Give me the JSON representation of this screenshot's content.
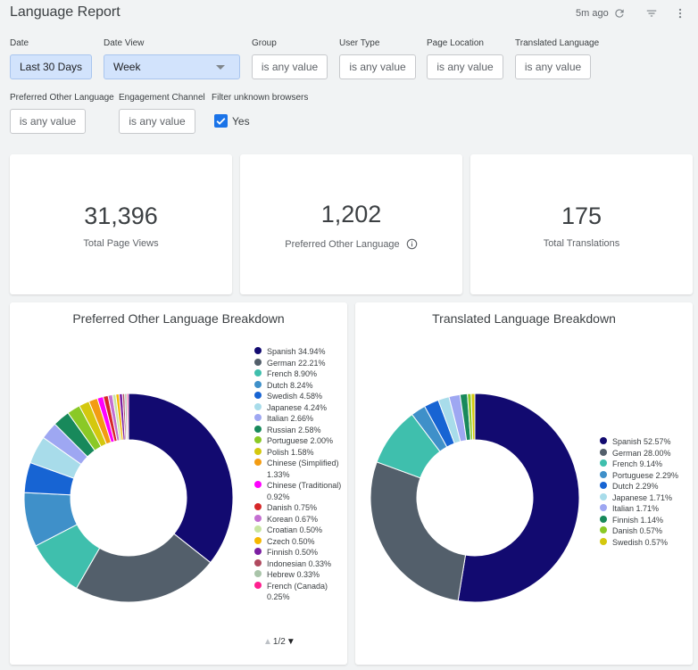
{
  "header": {
    "title": "Language Report",
    "updated": "5m ago",
    "icons": [
      "refresh-icon",
      "filter-icon",
      "more-vert-icon"
    ]
  },
  "filters": {
    "date": {
      "label": "Date",
      "value": "Last 30 Days"
    },
    "date_view": {
      "label": "Date View",
      "value": "Week"
    },
    "group": {
      "label": "Group",
      "value": "is any value"
    },
    "user_type": {
      "label": "User Type",
      "value": "is any value"
    },
    "page_location": {
      "label": "Page Location",
      "value": "is any value"
    },
    "translated_language": {
      "label": "Translated Language",
      "value": "is any value"
    },
    "preferred_other_language": {
      "label": "Preferred Other Language",
      "value": "is any value"
    },
    "engagement_channel": {
      "label": "Engagement Channel",
      "value": "is any value"
    },
    "filter_unknown_browsers": {
      "label": "Filter unknown browsers",
      "value": "Yes",
      "checked": true
    }
  },
  "kpis": [
    {
      "value": "31,396",
      "label": "Total Page Views"
    },
    {
      "value": "1,202",
      "label": "Preferred Other Language"
    },
    {
      "value": "175",
      "label": "Total Translations"
    }
  ],
  "pager": {
    "text": "1/2"
  },
  "chart_data": [
    {
      "type": "pie",
      "donut": true,
      "title": "Preferred Other Language Breakdown",
      "legend_position": "right",
      "slices": [
        {
          "label": "Spanish 34.94%",
          "value": 34.94,
          "color": "#120a70"
        },
        {
          "label": "German 22.21%",
          "value": 22.21,
          "color": "#535f6b"
        },
        {
          "label": "French 8.90%",
          "value": 8.9,
          "color": "#3fbfad"
        },
        {
          "label": "Dutch 8.24%",
          "value": 8.24,
          "color": "#3f90c9"
        },
        {
          "label": "Swedish 4.58%",
          "value": 4.58,
          "color": "#1764d3"
        },
        {
          "label": "Japanese 4.24%",
          "value": 4.24,
          "color": "#a8dcea"
        },
        {
          "label": "Italian 2.66%",
          "value": 2.66,
          "color": "#9ea7f2"
        },
        {
          "label": "Russian 2.58%",
          "value": 2.58,
          "color": "#18895b"
        },
        {
          "label": "Portuguese 2.00%",
          "value": 2.0,
          "color": "#8ac926"
        },
        {
          "label": "Polish 1.58%",
          "value": 1.58,
          "color": "#d4c80e"
        },
        {
          "label": "Chinese (Simplified) 1.33%",
          "value": 1.33,
          "color": "#f39c12"
        },
        {
          "label": "Chinese (Traditional) 0.92%",
          "value": 0.92,
          "color": "#ff00ff"
        },
        {
          "label": "Danish 0.75%",
          "value": 0.75,
          "color": "#d62728"
        },
        {
          "label": "Korean 0.67%",
          "value": 0.67,
          "color": "#c46fd1"
        },
        {
          "label": "Croatian 0.50%",
          "value": 0.5,
          "color": "#c8e5a1"
        },
        {
          "label": "Czech 0.50%",
          "value": 0.5,
          "color": "#f5b700"
        },
        {
          "label": "Finnish 0.50%",
          "value": 0.5,
          "color": "#7b1fa2"
        },
        {
          "label": "Indonesian 0.33%",
          "value": 0.33,
          "color": "#b04a5f"
        },
        {
          "label": "Hebrew 0.33%",
          "value": 0.33,
          "color": "#a9c4a9"
        },
        {
          "label": "French (Canada) 0.25%",
          "value": 0.25,
          "color": "#ff1f8f"
        }
      ]
    },
    {
      "type": "pie",
      "donut": true,
      "title": "Translated Language Breakdown",
      "legend_position": "right",
      "slices": [
        {
          "label": "Spanish 52.57%",
          "value": 52.57,
          "color": "#120a70"
        },
        {
          "label": "German 28.00%",
          "value": 28.0,
          "color": "#535f6b"
        },
        {
          "label": "French 9.14%",
          "value": 9.14,
          "color": "#3fbfad"
        },
        {
          "label": "Portuguese 2.29%",
          "value": 2.29,
          "color": "#3f90c9"
        },
        {
          "label": "Dutch 2.29%",
          "value": 2.29,
          "color": "#1764d3"
        },
        {
          "label": "Japanese 1.71%",
          "value": 1.71,
          "color": "#a8dcea"
        },
        {
          "label": "Italian 1.71%",
          "value": 1.71,
          "color": "#9ea7f2"
        },
        {
          "label": "Finnish 1.14%",
          "value": 1.14,
          "color": "#18895b"
        },
        {
          "label": "Danish 0.57%",
          "value": 0.57,
          "color": "#8ac926"
        },
        {
          "label": "Swedish 0.57%",
          "value": 0.57,
          "color": "#d4c80e"
        }
      ]
    }
  ]
}
